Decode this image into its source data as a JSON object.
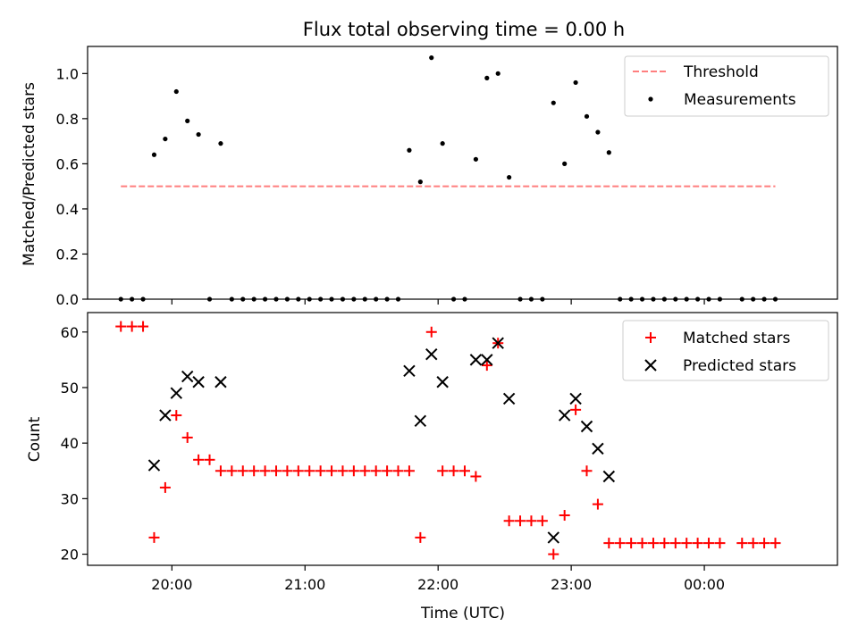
{
  "chart_data": [
    {
      "type": "scatter",
      "title": "Flux total observing time = 0.00 h",
      "xlabel": "",
      "ylabel": "Matched/Predicted stars",
      "ylim": [
        0,
        1.12
      ],
      "yticks": [
        "0.0",
        "0.2",
        "0.4",
        "0.6",
        "0.8",
        "1.0"
      ],
      "xlim": [
        "19:22",
        "01:00"
      ],
      "legend": {
        "placement": "top-right",
        "entries": [
          "Threshold",
          "Measurements"
        ]
      },
      "threshold": {
        "name": "Threshold",
        "value": 0.5,
        "x_start": "19:37",
        "x_end": "00:32",
        "color": "#ff7f7f"
      },
      "series": [
        {
          "name": "Measurements",
          "color": "#000000",
          "points": [
            [
              "19:37",
              0.0
            ],
            [
              "19:42",
              0.0
            ],
            [
              "19:47",
              0.0
            ],
            [
              "19:52",
              0.64
            ],
            [
              "19:57",
              0.71
            ],
            [
              "20:02",
              0.92
            ],
            [
              "20:07",
              0.79
            ],
            [
              "20:12",
              0.73
            ],
            [
              "20:17",
              0.0
            ],
            [
              "20:22",
              0.69
            ],
            [
              "20:27",
              0.0
            ],
            [
              "20:32",
              0.0
            ],
            [
              "20:37",
              0.0
            ],
            [
              "20:42",
              0.0
            ],
            [
              "20:47",
              0.0
            ],
            [
              "20:52",
              0.0
            ],
            [
              "20:57",
              0.0
            ],
            [
              "21:02",
              0.0
            ],
            [
              "21:07",
              0.0
            ],
            [
              "21:12",
              0.0
            ],
            [
              "21:17",
              0.0
            ],
            [
              "21:22",
              0.0
            ],
            [
              "21:27",
              0.0
            ],
            [
              "21:32",
              0.0
            ],
            [
              "21:37",
              0.0
            ],
            [
              "21:42",
              0.0
            ],
            [
              "21:47",
              0.66
            ],
            [
              "21:52",
              0.52
            ],
            [
              "21:57",
              1.07
            ],
            [
              "22:02",
              0.69
            ],
            [
              "22:07",
              0.0
            ],
            [
              "22:12",
              0.0
            ],
            [
              "22:17",
              0.62
            ],
            [
              "22:22",
              0.98
            ],
            [
              "22:27",
              1.0
            ],
            [
              "22:32",
              0.54
            ],
            [
              "22:37",
              0.0
            ],
            [
              "22:42",
              0.0
            ],
            [
              "22:47",
              0.0
            ],
            [
              "22:52",
              0.87
            ],
            [
              "22:57",
              0.6
            ],
            [
              "23:02",
              0.96
            ],
            [
              "23:07",
              0.81
            ],
            [
              "23:12",
              0.74
            ],
            [
              "23:17",
              0.65
            ],
            [
              "23:22",
              0.0
            ],
            [
              "23:27",
              0.0
            ],
            [
              "23:32",
              0.0
            ],
            [
              "23:37",
              0.0
            ],
            [
              "23:42",
              0.0
            ],
            [
              "23:47",
              0.0
            ],
            [
              "23:52",
              0.0
            ],
            [
              "23:57",
              0.0
            ],
            [
              "00:02",
              0.0
            ],
            [
              "00:07",
              0.0
            ],
            [
              "00:17",
              0.0
            ],
            [
              "00:22",
              0.0
            ],
            [
              "00:27",
              0.0
            ],
            [
              "00:32",
              0.0
            ]
          ]
        }
      ]
    },
    {
      "type": "scatter",
      "title": "",
      "xlabel": "Time (UTC)",
      "ylabel": "Count",
      "ylim": [
        18,
        63.5
      ],
      "yticks": [
        "20",
        "30",
        "40",
        "50",
        "60"
      ],
      "xlim": [
        "19:22",
        "01:00"
      ],
      "xticks": [
        "20:00",
        "21:00",
        "22:00",
        "23:00",
        "00:00"
      ],
      "legend": {
        "placement": "top-right",
        "entries": [
          "Matched stars",
          "Predicted stars"
        ]
      },
      "series": [
        {
          "name": "Matched stars",
          "marker": "plus",
          "color": "#ff0000",
          "points": [
            [
              "19:37",
              61
            ],
            [
              "19:42",
              61
            ],
            [
              "19:47",
              61
            ],
            [
              "19:52",
              23
            ],
            [
              "19:57",
              32
            ],
            [
              "20:02",
              45
            ],
            [
              "20:07",
              41
            ],
            [
              "20:12",
              37
            ],
            [
              "20:17",
              37
            ],
            [
              "20:22",
              35
            ],
            [
              "20:27",
              35
            ],
            [
              "20:32",
              35
            ],
            [
              "20:37",
              35
            ],
            [
              "20:42",
              35
            ],
            [
              "20:47",
              35
            ],
            [
              "20:52",
              35
            ],
            [
              "20:57",
              35
            ],
            [
              "21:02",
              35
            ],
            [
              "21:07",
              35
            ],
            [
              "21:12",
              35
            ],
            [
              "21:17",
              35
            ],
            [
              "21:22",
              35
            ],
            [
              "21:27",
              35
            ],
            [
              "21:32",
              35
            ],
            [
              "21:37",
              35
            ],
            [
              "21:42",
              35
            ],
            [
              "21:47",
              35
            ],
            [
              "21:52",
              23
            ],
            [
              "21:57",
              60
            ],
            [
              "22:02",
              35
            ],
            [
              "22:07",
              35
            ],
            [
              "22:12",
              35
            ],
            [
              "22:17",
              34
            ],
            [
              "22:22",
              54
            ],
            [
              "22:27",
              58
            ],
            [
              "22:32",
              26
            ],
            [
              "22:37",
              26
            ],
            [
              "22:42",
              26
            ],
            [
              "22:47",
              26
            ],
            [
              "22:52",
              20
            ],
            [
              "22:57",
              27
            ],
            [
              "23:02",
              46
            ],
            [
              "23:07",
              35
            ],
            [
              "23:12",
              29
            ],
            [
              "23:17",
              22
            ],
            [
              "23:22",
              22
            ],
            [
              "23:27",
              22
            ],
            [
              "23:32",
              22
            ],
            [
              "23:37",
              22
            ],
            [
              "23:42",
              22
            ],
            [
              "23:47",
              22
            ],
            [
              "23:52",
              22
            ],
            [
              "23:57",
              22
            ],
            [
              "00:02",
              22
            ],
            [
              "00:07",
              22
            ],
            [
              "00:17",
              22
            ],
            [
              "00:22",
              22
            ],
            [
              "00:27",
              22
            ],
            [
              "00:32",
              22
            ]
          ]
        },
        {
          "name": "Predicted stars",
          "marker": "x",
          "color": "#000000",
          "points": [
            [
              "19:52",
              36
            ],
            [
              "19:57",
              45
            ],
            [
              "20:02",
              49
            ],
            [
              "20:07",
              52
            ],
            [
              "20:12",
              51
            ],
            [
              "20:22",
              51
            ],
            [
              "21:47",
              53
            ],
            [
              "21:52",
              44
            ],
            [
              "21:57",
              56
            ],
            [
              "22:02",
              51
            ],
            [
              "22:17",
              55
            ],
            [
              "22:22",
              55
            ],
            [
              "22:27",
              58
            ],
            [
              "22:32",
              48
            ],
            [
              "22:52",
              23
            ],
            [
              "22:57",
              45
            ],
            [
              "23:02",
              48
            ],
            [
              "23:07",
              43
            ],
            [
              "23:12",
              39
            ],
            [
              "23:17",
              34
            ]
          ]
        }
      ]
    }
  ]
}
